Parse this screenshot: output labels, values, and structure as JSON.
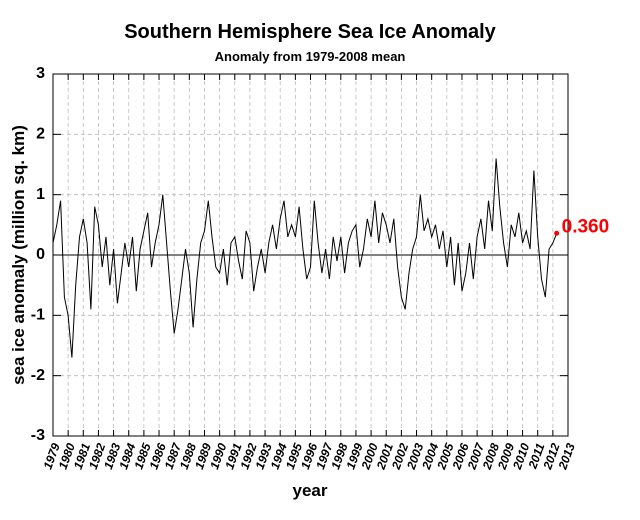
{
  "chart_data": {
    "type": "line",
    "title": "Southern Hemisphere Sea Ice Anomaly",
    "subtitle": "Anomaly from 1979-2008 mean",
    "xlabel": "year",
    "ylabel": "sea ice anomaly (million sq. km)",
    "annotation": "0.360",
    "annotation_color": "#ff0000",
    "color": "#000000",
    "grid": true,
    "xlim": [
      1979,
      2013
    ],
    "ylim": [
      -3,
      3
    ],
    "yticks": [
      -3,
      -2,
      -1,
      0,
      1,
      2,
      3
    ],
    "xticks": [
      1979,
      1980,
      1981,
      1982,
      1983,
      1984,
      1985,
      1986,
      1987,
      1988,
      1989,
      1990,
      1991,
      1992,
      1993,
      1994,
      1995,
      1996,
      1997,
      1998,
      1999,
      2000,
      2001,
      2002,
      2003,
      2004,
      2005,
      2006,
      2007,
      2008,
      2009,
      2010,
      2011,
      2012,
      2013
    ],
    "x": [
      1979,
      1979.25,
      1979.5,
      1979.75,
      1980,
      1980.25,
      1980.5,
      1980.75,
      1981,
      1981.25,
      1981.5,
      1981.75,
      1982,
      1982.25,
      1982.5,
      1982.75,
      1983,
      1983.25,
      1983.5,
      1983.75,
      1984,
      1984.25,
      1984.5,
      1984.75,
      1985,
      1985.25,
      1985.5,
      1985.75,
      1986,
      1986.25,
      1986.5,
      1986.75,
      1987,
      1987.25,
      1987.5,
      1987.75,
      1988,
      1988.25,
      1988.5,
      1988.75,
      1989,
      1989.25,
      1989.5,
      1989.75,
      1990,
      1990.25,
      1990.5,
      1990.75,
      1991,
      1991.25,
      1991.5,
      1991.75,
      1992,
      1992.25,
      1992.5,
      1992.75,
      1993,
      1993.25,
      1993.5,
      1993.75,
      1994,
      1994.25,
      1994.5,
      1994.75,
      1995,
      1995.25,
      1995.5,
      1995.75,
      1996,
      1996.25,
      1996.5,
      1996.75,
      1997,
      1997.25,
      1997.5,
      1997.75,
      1998,
      1998.25,
      1998.5,
      1998.75,
      1999,
      1999.25,
      1999.5,
      1999.75,
      2000,
      2000.25,
      2000.5,
      2000.75,
      2001,
      2001.25,
      2001.5,
      2001.75,
      2002,
      2002.25,
      2002.5,
      2002.75,
      2003,
      2003.25,
      2003.5,
      2003.75,
      2004,
      2004.25,
      2004.5,
      2004.75,
      2005,
      2005.25,
      2005.5,
      2005.75,
      2006,
      2006.25,
      2006.5,
      2006.75,
      2007,
      2007.25,
      2007.5,
      2007.75,
      2008,
      2008.25,
      2008.5,
      2008.75,
      2009,
      2009.25,
      2009.5,
      2009.75,
      2010,
      2010.25,
      2010.5,
      2010.75,
      2011,
      2011.25,
      2011.5,
      2011.75,
      2012,
      2012.25
    ],
    "values": [
      0.2,
      0.5,
      0.9,
      -0.7,
      -1.0,
      -1.7,
      -0.5,
      0.3,
      0.6,
      0.2,
      -0.9,
      0.8,
      0.5,
      -0.2,
      0.3,
      -0.5,
      0.1,
      -0.8,
      -0.3,
      0.2,
      -0.2,
      0.3,
      -0.6,
      0.1,
      0.4,
      0.7,
      -0.2,
      0.2,
      0.5,
      1.0,
      0.2,
      -0.6,
      -1.3,
      -0.9,
      -0.4,
      0.1,
      -0.3,
      -1.2,
      -0.4,
      0.2,
      0.4,
      0.9,
      0.3,
      -0.2,
      -0.3,
      0.1,
      -0.5,
      0.2,
      0.3,
      -0.1,
      -0.4,
      0.4,
      0.2,
      -0.6,
      -0.2,
      0.1,
      -0.3,
      0.2,
      0.5,
      0.1,
      0.6,
      0.9,
      0.3,
      0.5,
      0.3,
      0.8,
      0.1,
      -0.4,
      -0.2,
      0.9,
      0.2,
      -0.3,
      0.1,
      -0.4,
      0.3,
      -0.1,
      0.3,
      -0.3,
      0.2,
      0.4,
      0.5,
      -0.2,
      0.1,
      0.6,
      0.3,
      0.9,
      0.2,
      0.7,
      0.5,
      0.2,
      0.6,
      -0.2,
      -0.7,
      -0.9,
      -0.3,
      0.1,
      0.3,
      1.0,
      0.4,
      0.6,
      0.3,
      0.5,
      0.1,
      0.4,
      -0.2,
      0.3,
      -0.5,
      0.2,
      -0.6,
      -0.3,
      0.2,
      -0.4,
      0.3,
      0.6,
      0.1,
      0.9,
      0.4,
      1.6,
      0.8,
      0.2,
      -0.2,
      0.5,
      0.3,
      0.7,
      0.2,
      0.4,
      0.1,
      1.4,
      0.3,
      -0.4,
      -0.7,
      0.1,
      0.2,
      0.36
    ]
  }
}
